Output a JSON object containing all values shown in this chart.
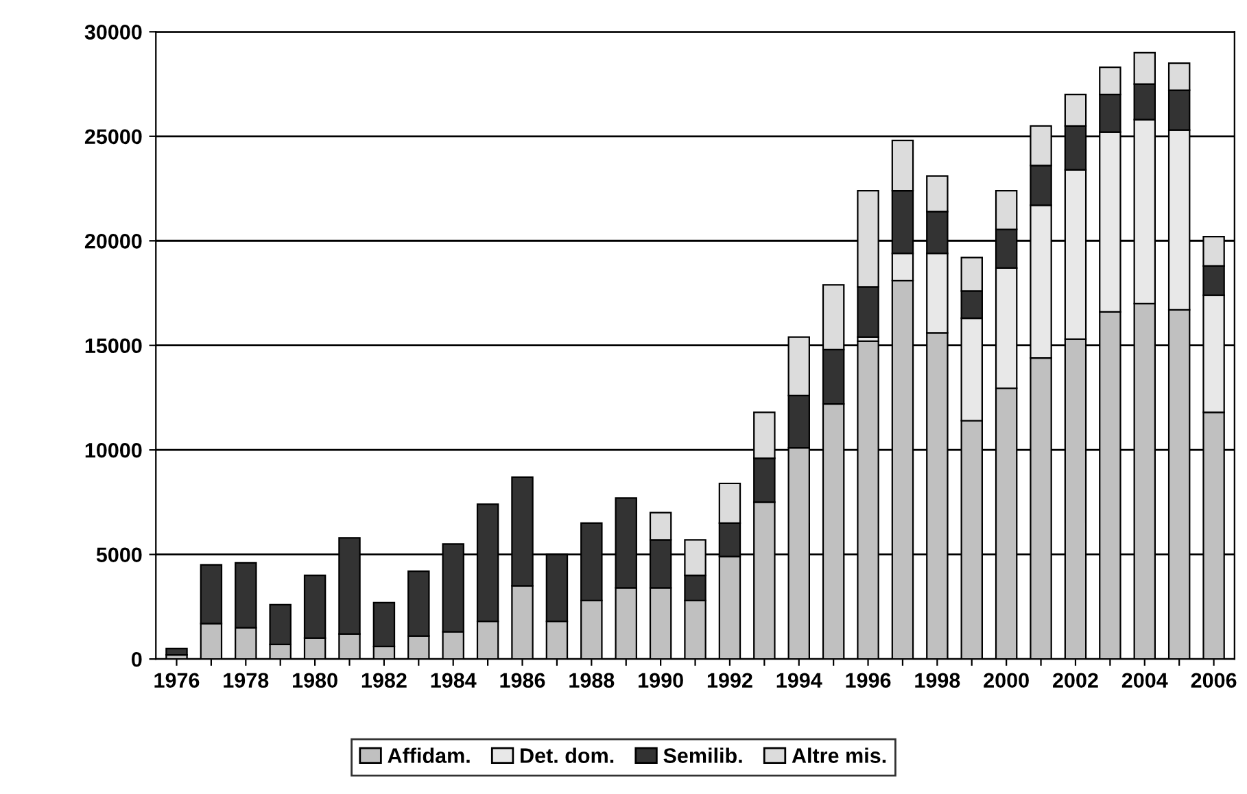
{
  "chart_data": {
    "type": "bar",
    "stacked": true,
    "categories": [
      "1976",
      null,
      "1978",
      null,
      "1980",
      null,
      "1982",
      null,
      "1984",
      null,
      "1986",
      null,
      "1988",
      null,
      "1990",
      null,
      "1992",
      null,
      "1994",
      null,
      "1996",
      null,
      "1998",
      null,
      "2000",
      null,
      "2002",
      null,
      "2004",
      null,
      "2006"
    ],
    "series": [
      {
        "name": "Affidam.",
        "color": "#c0c0c0",
        "values": [
          200,
          1700,
          1500,
          700,
          1000,
          1200,
          600,
          1100,
          1300,
          1800,
          3500,
          1800,
          2800,
          3400,
          3400,
          2800,
          4900,
          7500,
          10100,
          12200,
          15200,
          18100,
          15600,
          11400,
          12950,
          14400,
          15300,
          16600,
          17000,
          16700,
          11800
        ]
      },
      {
        "name": "Det. dom.",
        "color": "#e8e8e8",
        "values": [
          null,
          null,
          null,
          null,
          null,
          null,
          null,
          null,
          null,
          null,
          null,
          null,
          null,
          null,
          null,
          null,
          null,
          null,
          null,
          null,
          200,
          1300,
          3800,
          4900,
          5750,
          7300,
          8100,
          8600,
          8800,
          8600,
          5600
        ]
      },
      {
        "name": "Semilib.",
        "color": "#333333",
        "values": [
          300,
          2800,
          3100,
          1900,
          3000,
          4600,
          2100,
          3100,
          4200,
          5600,
          5200,
          3200,
          3700,
          4300,
          2300,
          1200,
          1600,
          2100,
          2500,
          2600,
          2400,
          3000,
          2000,
          1300,
          1850,
          1900,
          2100,
          1800,
          1700,
          1900,
          1400
        ]
      },
      {
        "name": "Altre mis.",
        "color": "#dcdcdc",
        "values": [
          null,
          null,
          null,
          null,
          null,
          null,
          null,
          null,
          null,
          null,
          null,
          null,
          null,
          null,
          1300,
          1700,
          1900,
          2200,
          2800,
          3100,
          4600,
          2400,
          1700,
          1600,
          1850,
          1900,
          1500,
          1300,
          1500,
          1300,
          1400
        ]
      }
    ],
    "ylim": [
      0,
      30000
    ],
    "yticks": [
      0,
      5000,
      10000,
      15000,
      20000,
      25000,
      30000
    ],
    "grid": "y",
    "legend": "bottom"
  }
}
